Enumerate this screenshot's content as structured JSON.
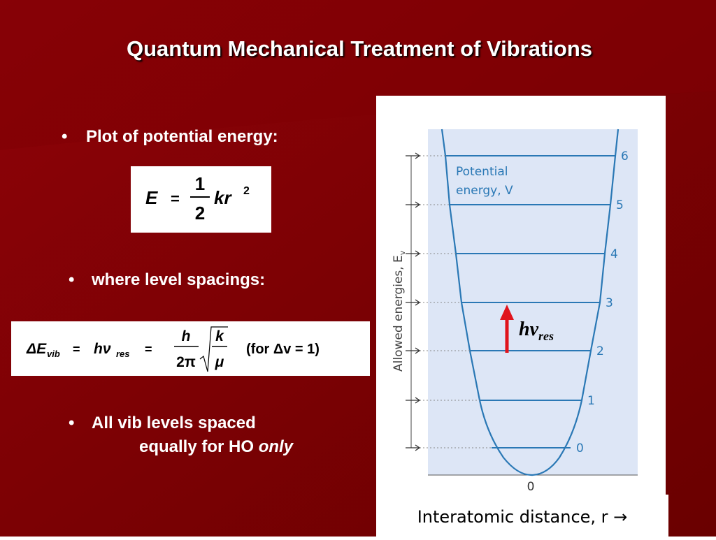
{
  "title": "Quantum Mechanical Treatment of Vibrations",
  "bullets": [
    {
      "text": "Plot of potential energy:"
    },
    {
      "text": "where level spacings:"
    },
    {
      "text": "All vib levels spaced",
      "text_2": "equally for HO",
      "emphasis": "only"
    }
  ],
  "equation_1": {
    "lhs": "E",
    "equals": "=",
    "numerator": "1",
    "denominator": "2",
    "rhs": "kr",
    "exponent": "2"
  },
  "equation_2": {
    "lhs": "ΔE",
    "lhs_sub": "vib",
    "equals_1": "=",
    "rhs_1": "hν",
    "rhs_1_sub": "res",
    "equals_2": "=",
    "numerator": "h",
    "denominator": "2π",
    "root_numerator": "k",
    "root_denominator": "μ",
    "condition": "(for Δv = 1)"
  },
  "figure": {
    "curve_label": [
      "Potential",
      "energy, V"
    ],
    "axis_label": "Allowed energies, E",
    "axis_sub": "v",
    "levels": [
      "0",
      "1",
      "2",
      "3",
      "4",
      "5",
      "6"
    ],
    "origin": "0",
    "transition": "hν",
    "transition_sub": "res",
    "x_label": "Interatomic distance, r →"
  }
}
